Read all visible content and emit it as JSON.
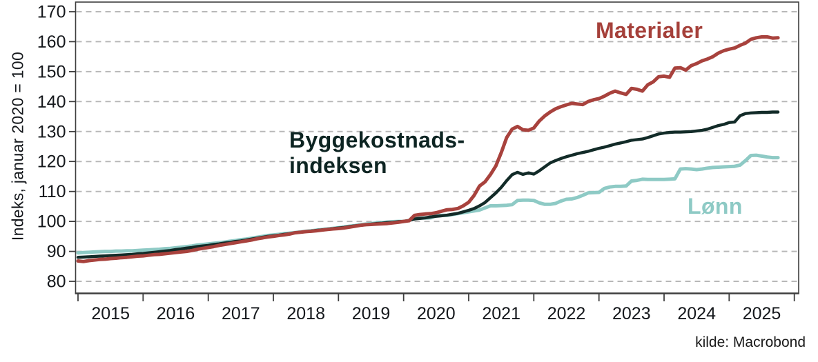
{
  "chart_data": {
    "type": "line",
    "title": "",
    "frequency": "monthly",
    "x_start": "2015-01",
    "x_end": "2025-10",
    "source_text": "kilde: Macrobond",
    "grid": true,
    "style": {
      "grid_color": "#b8b8b8",
      "axis_color": "#3e3e3e",
      "tick_text_color": "#15181c"
    },
    "x_axis": {
      "tick_labels": [
        "2015",
        "2016",
        "2017",
        "2018",
        "2019",
        "2020",
        "2021",
        "2022",
        "2023",
        "2024",
        "2025"
      ]
    },
    "y_axis": {
      "label": "Indeks, januar 2020 = 100",
      "ticks": [
        80,
        90,
        100,
        110,
        120,
        130,
        140,
        150,
        160,
        170
      ],
      "range_shown": [
        75.6,
        173.2
      ]
    },
    "annotations": {
      "materialer": "Materialer",
      "byggekostnads_line1": "Byggekostnads-",
      "byggekostnads_line2": "indeksen",
      "lonn": "Lønn"
    },
    "series": [
      {
        "name": "Materialer",
        "color": "#a8423d",
        "values": [
          86.8,
          86.6,
          86.9,
          87.1,
          87.3,
          87.4,
          87.6,
          87.7,
          87.9,
          88.0,
          88.2,
          88.4,
          88.5,
          88.7,
          88.9,
          89.0,
          89.2,
          89.4,
          89.6,
          89.8,
          90.0,
          90.3,
          90.7,
          91.0,
          91.3,
          91.6,
          92.0,
          92.3,
          92.6,
          92.9,
          93.2,
          93.5,
          93.8,
          94.2,
          94.5,
          94.8,
          95.0,
          95.3,
          95.5,
          95.8,
          96.2,
          96.4,
          96.6,
          96.7,
          96.9,
          97.1,
          97.3,
          97.5,
          97.6,
          97.8,
          98.1,
          98.4,
          98.7,
          98.9,
          99.0,
          99.1,
          99.2,
          99.3,
          99.5,
          99.7,
          100.0,
          100.2,
          102.0,
          102.3,
          102.5,
          102.6,
          102.9,
          103.4,
          103.9,
          104.0,
          104.3,
          105.2,
          106.4,
          108.7,
          111.8,
          113.2,
          115.6,
          118.5,
          123.0,
          128.0,
          130.8,
          131.7,
          130.6,
          130.4,
          131.2,
          133.5,
          135.2,
          136.5,
          137.6,
          138.3,
          138.9,
          139.4,
          139.2,
          139.0,
          140.0,
          140.6,
          141.0,
          141.8,
          142.8,
          143.5,
          142.9,
          142.4,
          144.4,
          144.1,
          143.5,
          145.6,
          146.6,
          148.3,
          148.5,
          148.1,
          151.2,
          151.3,
          150.5,
          152.0,
          152.7,
          153.6,
          154.2,
          155.0,
          156.2,
          157.0,
          157.5,
          157.9,
          158.8,
          159.5,
          160.8,
          161.3,
          161.6,
          161.6,
          161.2,
          161.3
        ]
      },
      {
        "name": "Byggekostnadsindeksen",
        "color": "#122b28",
        "values": [
          88.0,
          88.1,
          88.2,
          88.3,
          88.4,
          88.5,
          88.6,
          88.7,
          88.8,
          88.9,
          89.0,
          89.2,
          89.3,
          89.5,
          89.7,
          89.9,
          90.1,
          90.3,
          90.6,
          90.8,
          91.1,
          91.3,
          91.6,
          91.8,
          92.0,
          92.3,
          92.5,
          92.8,
          93.0,
          93.3,
          93.5,
          93.8,
          94.1,
          94.4,
          94.7,
          95.0,
          95.2,
          95.4,
          95.7,
          95.9,
          96.2,
          96.4,
          96.6,
          96.8,
          97.0,
          97.2,
          97.4,
          97.6,
          97.8,
          98.0,
          98.3,
          98.5,
          98.7,
          98.9,
          99.1,
          99.3,
          99.4,
          99.6,
          99.7,
          99.9,
          100.0,
          100.3,
          100.8,
          101.0,
          101.2,
          101.5,
          101.7,
          101.9,
          102.1,
          102.4,
          102.7,
          103.2,
          103.7,
          104.3,
          105.2,
          106.3,
          107.9,
          109.5,
          111.4,
          113.6,
          115.6,
          116.4,
          115.7,
          116.2,
          115.8,
          116.9,
          118.2,
          119.5,
          120.3,
          121.0,
          121.6,
          122.1,
          122.6,
          123.0,
          123.4,
          123.9,
          124.4,
          124.8,
          125.3,
          125.8,
          126.2,
          126.6,
          127.1,
          127.3,
          127.5,
          128.0,
          128.6,
          129.2,
          129.5,
          129.7,
          129.8,
          129.8,
          129.9,
          130.0,
          130.2,
          130.4,
          130.8,
          131.4,
          132.0,
          132.4,
          133.0,
          133.2,
          135.3,
          136.0,
          136.2,
          136.3,
          136.4,
          136.4,
          136.5,
          136.5
        ]
      },
      {
        "name": "Lønn",
        "color": "#8ecac5",
        "values": [
          89.5,
          89.6,
          89.7,
          89.8,
          89.9,
          90.0,
          90.0,
          90.1,
          90.1,
          90.2,
          90.2,
          90.3,
          90.4,
          90.5,
          90.6,
          90.7,
          90.9,
          91.0,
          91.2,
          91.4,
          91.6,
          91.8,
          92.1,
          92.3,
          92.5,
          92.7,
          92.9,
          93.1,
          93.4,
          93.6,
          93.9,
          94.1,
          94.4,
          94.7,
          95.0,
          95.3,
          95.5,
          95.7,
          95.9,
          96.1,
          96.3,
          96.5,
          96.7,
          96.9,
          97.1,
          97.3,
          97.5,
          97.7,
          97.9,
          98.1,
          98.4,
          98.6,
          98.9,
          99.1,
          99.3,
          99.5,
          99.6,
          99.8,
          99.9,
          100.0,
          100.0,
          100.3,
          101.0,
          101.1,
          101.1,
          101.2,
          101.9,
          102.0,
          102.0,
          102.3,
          102.6,
          102.9,
          103.2,
          103.5,
          103.8,
          104.5,
          105.2,
          105.2,
          105.3,
          105.4,
          105.6,
          107.0,
          107.1,
          107.1,
          107.0,
          106.2,
          105.7,
          105.7,
          106.0,
          106.8,
          107.4,
          107.5,
          108.0,
          108.7,
          109.5,
          109.6,
          109.7,
          111.0,
          111.5,
          111.7,
          111.7,
          111.8,
          113.5,
          113.7,
          114.1,
          114.0,
          114.0,
          114.0,
          114.0,
          114.1,
          114.2,
          117.5,
          117.6,
          117.5,
          117.3,
          117.5,
          117.8,
          118.0,
          118.1,
          118.2,
          118.3,
          118.4,
          118.8,
          120.3,
          122.0,
          122.1,
          121.8,
          121.5,
          121.3,
          121.3
        ]
      }
    ]
  }
}
